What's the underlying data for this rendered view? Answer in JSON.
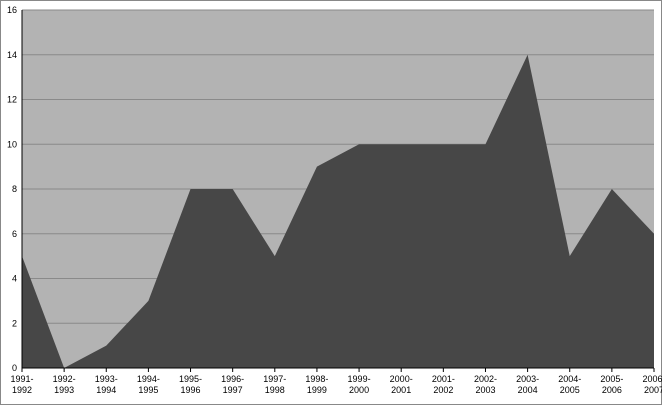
{
  "chart_data": {
    "type": "area",
    "categories": [
      "1991-\n1992",
      "1992-\n1993",
      "1993-\n1994",
      "1994-\n1995",
      "1995-\n1996",
      "1996-\n1997",
      "1997-\n1998",
      "1998-\n1999",
      "1999-\n2000",
      "2000-\n2001",
      "2001-\n2002",
      "2002-\n2003",
      "2003-\n2004",
      "2004-\n2005",
      "2005-\n2006",
      "2006-\n2007"
    ],
    "values": [
      5,
      0,
      1,
      3,
      8,
      8,
      5,
      9,
      10,
      10,
      10,
      10,
      14,
      5,
      8,
      6
    ],
    "color": "#474747",
    "background": "#b3b3b3",
    "ylim": [
      0,
      16
    ],
    "yticks": [
      0,
      2,
      4,
      6,
      8,
      10,
      12,
      14,
      16
    ],
    "grid": true
  }
}
